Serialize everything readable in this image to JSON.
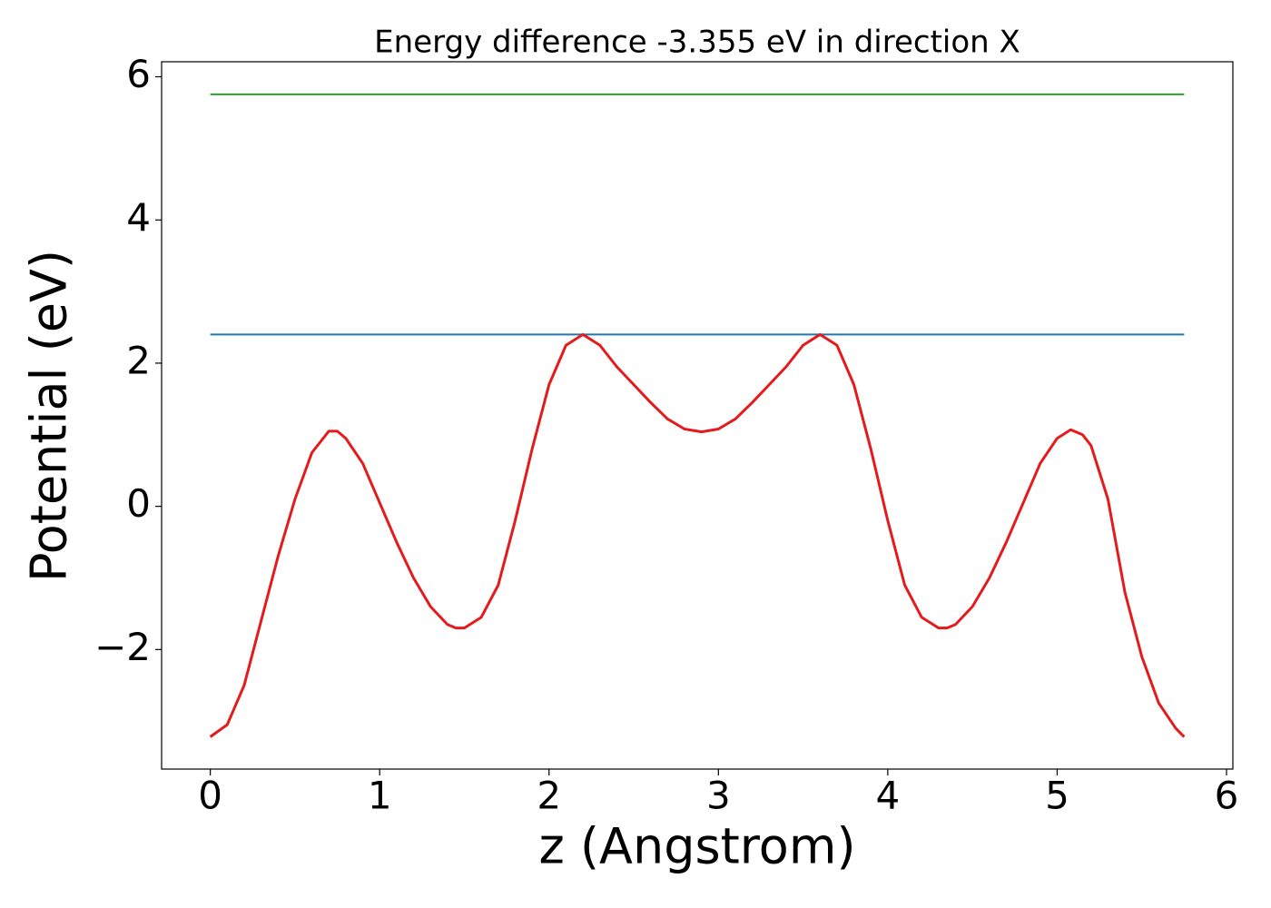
{
  "chart_data": {
    "type": "line",
    "title": "Energy difference -3.355 eV in direction X",
    "xlabel": "z (Angstrom)",
    "ylabel": "Potential (eV)",
    "xlim": [
      -0.2875,
      6.0375
    ],
    "ylim": [
      -3.67,
      6.21
    ],
    "xticks": [
      0,
      1,
      2,
      3,
      4,
      5,
      6
    ],
    "yticks": [
      {
        "value": -2,
        "label": "−2"
      },
      0,
      2,
      4,
      6
    ],
    "series": [
      {
        "color": "#2ca02c",
        "x": [
          0,
          5.75
        ],
        "values": [
          5.755,
          5.755
        ]
      },
      {
        "color": "#1f77b4",
        "x": [
          0,
          5.75
        ],
        "values": [
          2.4,
          2.4
        ]
      },
      {
        "color": "#e41a1c",
        "x": [
          0,
          0.1,
          0.2,
          0.3,
          0.4,
          0.5,
          0.6,
          0.7,
          0.75,
          0.8,
          0.9,
          1.0,
          1.1,
          1.2,
          1.3,
          1.4,
          1.45,
          1.5,
          1.6,
          1.7,
          1.8,
          1.9,
          2.0,
          2.1,
          2.2,
          2.3,
          2.4,
          2.5,
          2.6,
          2.7,
          2.8,
          2.9,
          3.0,
          3.1,
          3.2,
          3.3,
          3.4,
          3.5,
          3.6,
          3.7,
          3.8,
          3.9,
          4.0,
          4.1,
          4.2,
          4.3,
          4.35,
          4.4,
          4.5,
          4.6,
          4.7,
          4.8,
          4.9,
          5.0,
          5.08,
          5.15,
          5.2,
          5.3,
          5.4,
          5.5,
          5.6,
          5.7,
          5.75
        ],
        "values": [
          -3.22,
          -3.05,
          -2.5,
          -1.6,
          -0.7,
          0.1,
          0.75,
          1.05,
          1.05,
          0.95,
          0.6,
          0.05,
          -0.5,
          -1.0,
          -1.4,
          -1.65,
          -1.7,
          -1.7,
          -1.55,
          -1.1,
          -0.2,
          0.8,
          1.7,
          2.25,
          2.4,
          2.25,
          1.95,
          1.7,
          1.45,
          1.22,
          1.08,
          1.04,
          1.08,
          1.22,
          1.45,
          1.7,
          1.95,
          2.25,
          2.4,
          2.25,
          1.7,
          0.8,
          -0.2,
          -1.1,
          -1.55,
          -1.7,
          -1.7,
          -1.65,
          -1.4,
          -1.0,
          -0.5,
          0.05,
          0.6,
          0.95,
          1.07,
          1.0,
          0.85,
          0.1,
          -1.2,
          -2.1,
          -2.75,
          -3.1,
          -3.22
        ]
      }
    ]
  }
}
